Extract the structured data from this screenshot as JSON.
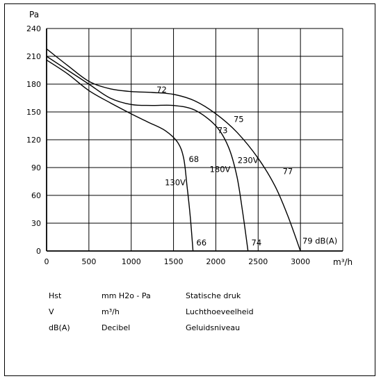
{
  "chart_data": {
    "type": "line",
    "y_unit": "Pa",
    "x_unit": "m³/h",
    "xlim": [
      0,
      3500
    ],
    "ylim": [
      0,
      240
    ],
    "x_ticks": [
      "0",
      "500",
      "1000",
      "1500",
      "2000",
      "2500",
      "3000"
    ],
    "y_ticks": [
      "0",
      "30",
      "60",
      "90",
      "120",
      "150",
      "180",
      "210",
      "240"
    ],
    "grid": true,
    "series": [
      {
        "name": "130V",
        "x": [
          0,
          250,
          500,
          750,
          1000,
          1200,
          1400,
          1550,
          1620,
          1660,
          1700,
          1730
        ],
        "y": [
          206,
          191,
          173,
          160,
          148,
          139,
          130,
          117,
          100,
          70,
          35,
          0
        ]
      },
      {
        "name": "180V",
        "x": [
          0,
          250,
          500,
          750,
          1000,
          1250,
          1500,
          1750,
          2000,
          2150,
          2250,
          2320,
          2380
        ],
        "y": [
          210,
          195,
          180,
          165,
          158,
          157,
          157,
          152,
          135,
          112,
          80,
          40,
          0
        ]
      },
      {
        "name": "230V",
        "x": [
          0,
          250,
          500,
          750,
          1000,
          1250,
          1500,
          1750,
          2000,
          2250,
          2500,
          2700,
          2850,
          3000
        ],
        "y": [
          218,
          200,
          183,
          175,
          172,
          171,
          169,
          162,
          148,
          128,
          100,
          70,
          38,
          0
        ]
      }
    ],
    "annotations": [
      {
        "text": "72",
        "x": 1360,
        "y": 171
      },
      {
        "text": "75",
        "x": 2270,
        "y": 139
      },
      {
        "text": "73",
        "x": 2080,
        "y": 127
      },
      {
        "text": "68",
        "x": 1740,
        "y": 96
      },
      {
        "text": "180V",
        "x": 2050,
        "y": 85
      },
      {
        "text": "230V",
        "x": 2380,
        "y": 95
      },
      {
        "text": "77",
        "x": 2850,
        "y": 83
      },
      {
        "text": "130V",
        "x": 1520,
        "y": 71
      },
      {
        "text": "66",
        "x": 1830,
        "y": 6
      },
      {
        "text": "74",
        "x": 2480,
        "y": 6
      },
      {
        "text": "79 dB(A)",
        "x": 3230,
        "y": 8
      }
    ]
  },
  "legend": {
    "rows": [
      {
        "symbol": "Hst",
        "unit": "mm H2o - Pa",
        "description": "Statische druk"
      },
      {
        "symbol": "V",
        "unit": "m³/h",
        "description": "Luchthoeveelheid"
      },
      {
        "symbol": "dB(A)",
        "unit": "Decibel",
        "description": "Geluidsniveau"
      }
    ]
  }
}
